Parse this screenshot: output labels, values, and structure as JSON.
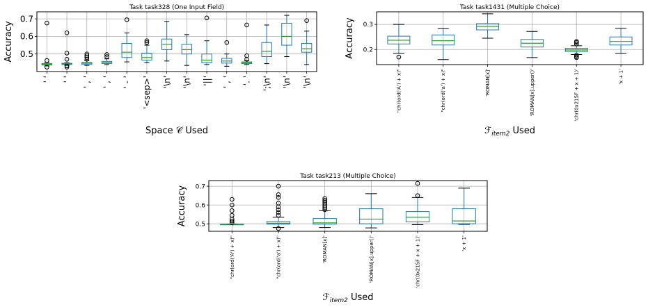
{
  "chart_data": [
    {
      "type": "box",
      "title": "Task task328 (One Input Field)",
      "xlabel": "Space 𝒞 Used",
      "ylabel": "Accuracy",
      "ylim": [
        0.4,
        0.74
      ],
      "yticks": [
        0.5,
        0.6,
        0.7
      ],
      "grid": true,
      "categories": [
        "' '",
        "' '",
        "' , '",
        "' , '",
        "' - '",
        "'<sep>'",
        "'\\n'",
        "'\\n'",
        "'||'",
        "' , '",
        "'. '",
        "';\\n'",
        "'\\n'",
        "'\\n'"
      ],
      "boxes": [
        {
          "whislo": 0.432,
          "q1": 0.437,
          "med": 0.441,
          "q3": 0.446,
          "whishi": 0.452,
          "fliers": [
            0.463,
            0.676,
            0.425
          ]
        },
        {
          "whislo": 0.436,
          "q1": 0.44,
          "med": 0.444,
          "q3": 0.447,
          "whishi": 0.45,
          "fliers": [
            0.425,
            0.432,
            0.47,
            0.505,
            0.62
          ]
        },
        {
          "whislo": 0.435,
          "q1": 0.441,
          "med": 0.447,
          "q3": 0.452,
          "whishi": 0.462,
          "fliers": [
            0.47,
            0.48,
            0.49,
            0.5
          ]
        },
        {
          "whislo": 0.44,
          "q1": 0.446,
          "med": 0.452,
          "q3": 0.458,
          "whishi": 0.472,
          "fliers": [
            0.485,
            0.497
          ]
        },
        {
          "whislo": 0.455,
          "q1": 0.48,
          "med": 0.51,
          "q3": 0.56,
          "whishi": 0.62,
          "fliers": [
            0.695
          ]
        },
        {
          "whislo": 0.45,
          "q1": 0.465,
          "med": 0.48,
          "q3": 0.505,
          "whishi": 0.55,
          "fliers": [
            0.565,
            0.575
          ]
        },
        {
          "whislo": 0.46,
          "q1": 0.525,
          "med": 0.555,
          "q3": 0.585,
          "whishi": 0.685,
          "fliers": []
        },
        {
          "whislo": 0.435,
          "q1": 0.5,
          "med": 0.525,
          "q3": 0.555,
          "whishi": 0.61,
          "fliers": []
        },
        {
          "whislo": 0.44,
          "q1": 0.45,
          "med": 0.465,
          "q3": 0.5,
          "whishi": 0.575,
          "fliers": [
            0.705
          ]
        },
        {
          "whislo": 0.43,
          "q1": 0.448,
          "med": 0.46,
          "q3": 0.475,
          "whishi": 0.5,
          "fliers": [
            0.565
          ]
        },
        {
          "whislo": 0.44,
          "q1": 0.445,
          "med": 0.45,
          "q3": 0.455,
          "whishi": 0.462,
          "fliers": [
            0.47,
            0.49,
            0.665
          ]
        },
        {
          "whislo": 0.445,
          "q1": 0.485,
          "med": 0.515,
          "q3": 0.565,
          "whishi": 0.665,
          "fliers": []
        },
        {
          "whislo": 0.485,
          "q1": 0.55,
          "med": 0.6,
          "q3": 0.675,
          "whishi": 0.72,
          "fliers": []
        },
        {
          "whislo": 0.44,
          "q1": 0.51,
          "med": 0.53,
          "q3": 0.56,
          "whishi": 0.63,
          "fliers": [
            0.69
          ]
        }
      ]
    },
    {
      "type": "box",
      "title": "Task task1431 (Multiple Choice)",
      "xlabel": "ℱitem2 Used",
      "ylabel": "Accuracy",
      "ylim": [
        0.14,
        0.35
      ],
      "yticks": [
        0.2,
        0.3
      ],
      "grid": true,
      "categories": [
        "\"chr(ord('A') + x)\"",
        "\"chr(ord('a') + x)\"",
        "'ROMAN[x]'",
        "'ROMAN[x].upper()'",
        "'chr(0x215F + x + 1)'",
        "'x + 1'"
      ],
      "boxes": [
        {
          "whislo": 0.185,
          "q1": 0.222,
          "med": 0.237,
          "q3": 0.253,
          "whishi": 0.3,
          "fliers": [
            0.17
          ]
        },
        {
          "whislo": 0.16,
          "q1": 0.218,
          "med": 0.235,
          "q3": 0.258,
          "whishi": 0.283,
          "fliers": []
        },
        {
          "whislo": 0.245,
          "q1": 0.278,
          "med": 0.292,
          "q3": 0.303,
          "whishi": 0.342,
          "fliers": []
        },
        {
          "whislo": 0.168,
          "q1": 0.21,
          "med": 0.225,
          "q3": 0.24,
          "whishi": 0.272,
          "fliers": []
        },
        {
          "whislo": 0.18,
          "q1": 0.192,
          "med": 0.198,
          "q3": 0.205,
          "whishi": 0.215,
          "fliers": [
            0.168,
            0.172,
            0.178,
            0.222,
            0.228,
            0.232
          ]
        },
        {
          "whislo": 0.185,
          "q1": 0.218,
          "med": 0.232,
          "q3": 0.25,
          "whishi": 0.285,
          "fliers": []
        }
      ]
    },
    {
      "type": "box",
      "title": "Task task213 (Multiple Choice)",
      "xlabel": "ℱitem2 Used",
      "ylabel": "Accuracy",
      "ylim": [
        0.46,
        0.73
      ],
      "yticks": [
        0.5,
        0.6,
        0.7
      ],
      "grid": true,
      "categories": [
        "\"chr(ord('A') + x)\"",
        "\"chr(ord('a') + x)\"",
        "'ROMAN[x]'",
        "'ROMAN[x].upper()'",
        "'chr(0x215F + x + 1)'",
        "'x + 1'"
      ],
      "boxes": [
        {
          "whislo": 0.495,
          "q1": 0.496,
          "med": 0.497,
          "q3": 0.498,
          "whishi": 0.499,
          "fliers": [
            0.505,
            0.515,
            0.525,
            0.545,
            0.57,
            0.6,
            0.63
          ]
        },
        {
          "whislo": 0.48,
          "q1": 0.498,
          "med": 0.503,
          "q3": 0.512,
          "whishi": 0.535,
          "fliers": [
            0.475,
            0.545,
            0.56,
            0.575,
            0.59,
            0.61,
            0.64,
            0.655,
            0.7
          ]
        },
        {
          "whislo": 0.48,
          "q1": 0.498,
          "med": 0.505,
          "q3": 0.528,
          "whishi": 0.57,
          "fliers": [
            0.575,
            0.585,
            0.595,
            0.605,
            0.615,
            0.625,
            0.635
          ]
        },
        {
          "whislo": 0.478,
          "q1": 0.5,
          "med": 0.525,
          "q3": 0.58,
          "whishi": 0.66,
          "fliers": []
        },
        {
          "whislo": 0.495,
          "q1": 0.51,
          "med": 0.535,
          "q3": 0.565,
          "whishi": 0.64,
          "fliers": [
            0.65,
            0.715
          ]
        },
        {
          "whislo": 0.497,
          "q1": 0.5,
          "med": 0.515,
          "q3": 0.58,
          "whishi": 0.69,
          "fliers": []
        }
      ]
    }
  ],
  "colors": {
    "box": "#1f77b4",
    "median": "#2ca02c",
    "grid": "#b0b0b0",
    "flier": "#000000"
  }
}
